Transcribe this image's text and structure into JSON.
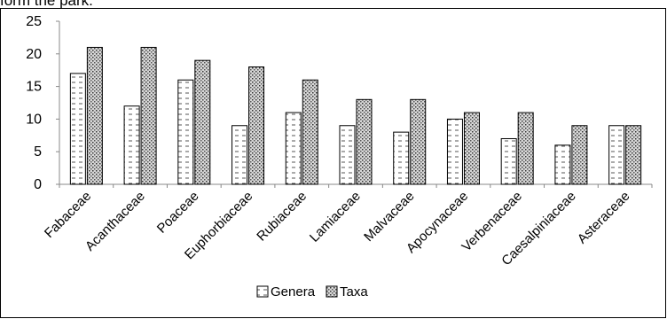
{
  "caption": "form the park.",
  "chart_data": {
    "type": "bar",
    "categories": [
      "Fabaceae",
      "Acanthaceae",
      "Poaceae",
      "Euphorbiaceae",
      "Rubiaceae",
      "Lamiaceae",
      "Malvaceae",
      "Apocynaceae",
      "Verbenaceae",
      "Caesalpiniaceae",
      "Asteraceae"
    ],
    "series": [
      {
        "name": "Genera",
        "values": [
          17,
          12,
          16,
          9,
          11,
          9,
          8,
          10,
          7,
          6,
          9
        ],
        "pattern": "dashes"
      },
      {
        "name": "Taxa",
        "values": [
          21,
          21,
          19,
          18,
          16,
          13,
          13,
          11,
          11,
          9,
          9
        ],
        "pattern": "dots"
      }
    ],
    "yticks": [
      0,
      5,
      10,
      15,
      20,
      25
    ],
    "ylim": [
      0,
      25
    ],
    "xlabel": "",
    "ylabel": "",
    "title": "",
    "legend_position": "bottom",
    "grid": false
  }
}
